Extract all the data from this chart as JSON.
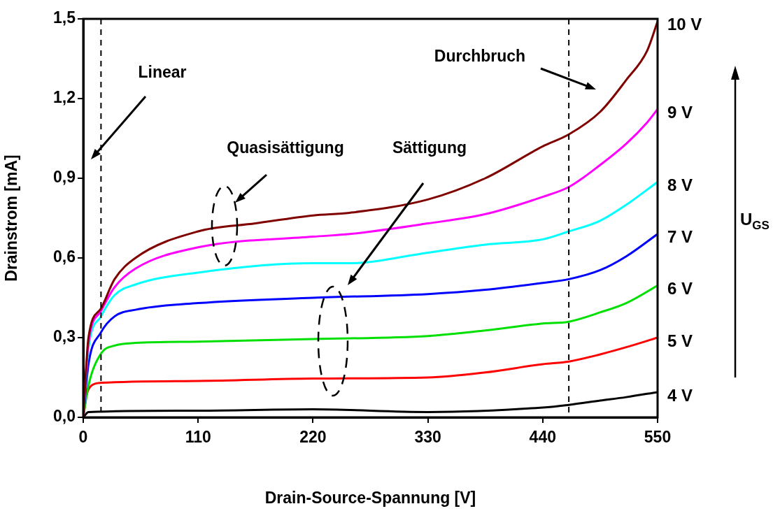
{
  "chart_data": {
    "type": "line",
    "xlabel": "Drain-Source-Spannung [V]",
    "ylabel": "Drainstrom [mA]",
    "xlim": [
      0,
      550
    ],
    "xticks": [
      0,
      110,
      220,
      330,
      440,
      550
    ],
    "ylim": [
      0,
      1.5
    ],
    "yticks": [
      {
        "value": 0,
        "label": "0,0"
      },
      {
        "value": 0.3,
        "label": "0,3"
      },
      {
        "value": 0.6,
        "label": "0,6"
      },
      {
        "value": 0.9,
        "label": "0,9"
      },
      {
        "value": 1.2,
        "label": "1,2"
      },
      {
        "value": 1.5,
        "label": "1,5"
      }
    ],
    "grid": false,
    "legend": false,
    "marker": "none",
    "line_style": "solid",
    "series": [
      {
        "name": "10 V",
        "color": "#800000",
        "x": [
          0,
          5,
          17,
          30,
          50,
          110,
          165,
          220,
          255,
          330,
          385,
          440,
          465,
          495,
          520,
          540,
          550
        ],
        "values": [
          0,
          0.3,
          0.41,
          0.52,
          0.6,
          0.7,
          0.73,
          0.76,
          0.77,
          0.82,
          0.9,
          1.02,
          1.065,
          1.15,
          1.27,
          1.38,
          1.49
        ]
      },
      {
        "name": "9 V",
        "color": "#ff00ff",
        "x": [
          0,
          5,
          17,
          30,
          50,
          110,
          220,
          255,
          330,
          385,
          440,
          465,
          495,
          520,
          540,
          550
        ],
        "values": [
          0,
          0.28,
          0.4,
          0.49,
          0.56,
          0.64,
          0.68,
          0.69,
          0.73,
          0.765,
          0.83,
          0.867,
          0.95,
          1.03,
          1.11,
          1.16
        ]
      },
      {
        "name": "8 V",
        "color": "#00ffff",
        "x": [
          0,
          5,
          17,
          30,
          50,
          110,
          220,
          255,
          330,
          385,
          440,
          465,
          495,
          520,
          550
        ],
        "values": [
          0,
          0.26,
          0.38,
          0.46,
          0.5,
          0.545,
          0.58,
          0.58,
          0.62,
          0.65,
          0.67,
          0.7,
          0.74,
          0.8,
          0.886
        ]
      },
      {
        "name": "7 V",
        "color": "#0000ff",
        "x": [
          0,
          5,
          17,
          30,
          50,
          110,
          220,
          330,
          385,
          440,
          465,
          495,
          520,
          550
        ],
        "values": [
          0,
          0.2,
          0.32,
          0.38,
          0.405,
          0.43,
          0.45,
          0.464,
          0.48,
          0.506,
          0.52,
          0.554,
          0.606,
          0.69
        ]
      },
      {
        "name": "6 V",
        "color": "#00e000",
        "x": [
          0,
          5,
          17,
          30,
          50,
          110,
          220,
          330,
          385,
          440,
          465,
          495,
          520,
          550
        ],
        "values": [
          0,
          0.12,
          0.24,
          0.27,
          0.28,
          0.285,
          0.295,
          0.306,
          0.327,
          0.353,
          0.36,
          0.395,
          0.43,
          0.496
        ]
      },
      {
        "name": "5 V",
        "color": "#ff0000",
        "x": [
          0,
          3,
          8,
          17,
          110,
          220,
          330,
          385,
          440,
          465,
          495,
          520,
          550
        ],
        "values": [
          0,
          0.08,
          0.12,
          0.13,
          0.137,
          0.146,
          0.15,
          0.169,
          0.2,
          0.21,
          0.237,
          0.264,
          0.3
        ]
      },
      {
        "name": "4 V",
        "color": "#000000",
        "x": [
          0,
          5,
          110,
          220,
          330,
          440,
          465,
          495,
          520,
          550
        ],
        "values": [
          0,
          0.02,
          0.025,
          0.03,
          0.02,
          0.037,
          0.047,
          0.063,
          0.076,
          0.095
        ]
      }
    ],
    "ref_lines": [
      {
        "axis": "x",
        "value": 17,
        "line_style": "dashed"
      },
      {
        "axis": "x",
        "value": 465,
        "line_style": "dashed"
      }
    ],
    "annotations": [
      "Linear",
      "Quasisättigung",
      "Sättigung",
      "Durchbruch",
      "U$_{GS}$"
    ]
  }
}
